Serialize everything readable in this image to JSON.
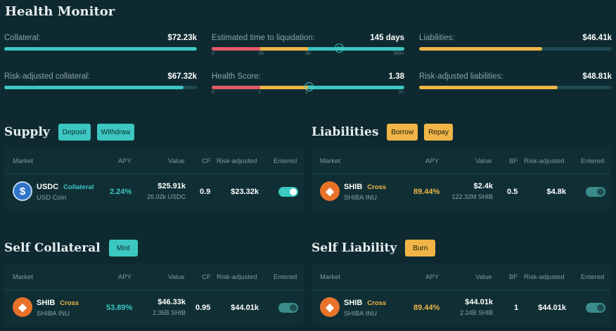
{
  "title": "Health Monitor",
  "metrics": {
    "collateral": {
      "label": "Collateral:",
      "value": "$72.23k",
      "fill": 1.0
    },
    "risk_collateral": {
      "label": "Risk-adjusted collateral:",
      "value": "$67.32k",
      "fill": 0.93
    },
    "liquidation": {
      "label": "Estimated time to liquidation:",
      "value": "145 days",
      "ticks": [
        "0",
        "10",
        "30",
        "365+"
      ]
    },
    "health": {
      "label": "Health Score:",
      "value": "1.38",
      "ticks": [
        "0",
        "1",
        "2",
        "5+"
      ]
    },
    "liabilities": {
      "label": "Liabilities:",
      "value": "$46.41k",
      "fill": 0.64
    },
    "risk_liabilities": {
      "label": "Risk-adjusted liabilities:",
      "value": "$48.81k",
      "fill": 0.72
    }
  },
  "supply": {
    "title": "Supply",
    "buttons": {
      "deposit": "Deposit",
      "withdraw": "Withdraw"
    },
    "headers": {
      "market": "Market",
      "apy": "APY",
      "value": "Value",
      "factor": "CF",
      "risk": "Risk-adjusted",
      "entered": "Entered"
    },
    "row": {
      "symbol": "USDC",
      "tag": "Collateral",
      "name": "USD Coin",
      "apy": "2.24%",
      "value": "$25.91k",
      "amount": "26.02k USDC",
      "factor": "0.9",
      "risk": "$23.32k",
      "entered": true
    }
  },
  "liabilities": {
    "title": "Liabilities",
    "buttons": {
      "borrow": "Borrow",
      "repay": "Repay"
    },
    "headers": {
      "market": "Market",
      "apy": "APY",
      "value": "Value",
      "factor": "BF",
      "risk": "Risk-adjusted",
      "entered": "Entered"
    },
    "row": {
      "symbol": "SHIB",
      "tag": "Cross",
      "name": "SHIBA INU",
      "apy": "89.44%",
      "value": "$2.4k",
      "amount": "122.32M SHIB",
      "factor": "0.5",
      "risk": "$4.8k",
      "entered": false
    }
  },
  "self_collateral": {
    "title": "Self Collateral",
    "buttons": {
      "mint": "Mint"
    },
    "headers": {
      "market": "Market",
      "apy": "APY",
      "value": "Value",
      "factor": "CF",
      "risk": "Risk-adjusted",
      "entered": "Entered"
    },
    "row": {
      "symbol": "SHIB",
      "tag": "Cross",
      "name": "SHIBA INU",
      "apy": "53.89%",
      "value": "$46.33k",
      "amount": "2.36B SHIB",
      "factor": "0.95",
      "risk": "$44.01k",
      "entered": false
    }
  },
  "self_liability": {
    "title": "Self Liability",
    "buttons": {
      "burn": "Burn"
    },
    "headers": {
      "market": "Market",
      "apy": "APY",
      "value": "Value",
      "factor": "BF",
      "risk": "Risk-adjusted",
      "entered": "Entered"
    },
    "row": {
      "symbol": "SHIB",
      "tag": "Cross",
      "name": "SHIBA INU",
      "apy": "89.44%",
      "value": "$44.01k",
      "amount": "2.24B SHIB",
      "factor": "1",
      "risk": "$44.01k",
      "entered": false
    }
  },
  "colors": {
    "teal": "#3cc7c2",
    "orange": "#f0b546",
    "red": "#e05a66",
    "background": "#0e2a30"
  },
  "icons": {
    "usdc": "usdc-coin-icon",
    "shib": "shiba-inu-coin-icon",
    "face": "smiley-face-icon"
  }
}
